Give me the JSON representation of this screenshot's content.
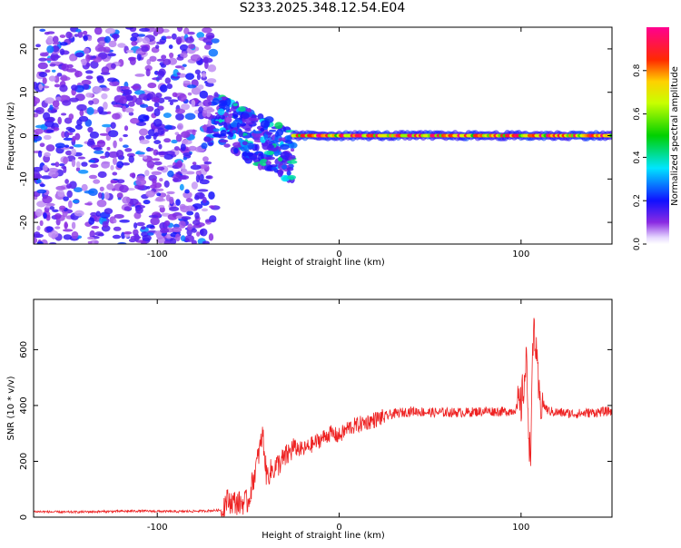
{
  "page_title": "S233.2025.348.12.54.E04",
  "chart_data": [
    {
      "type": "heatmap",
      "name": "spectrogram",
      "xlabel": "Height of straight line (km)",
      "ylabel": "Frequency (Hz)",
      "xlim": [
        -168,
        150
      ],
      "ylim": [
        -25,
        25
      ],
      "x_ticks": [
        -100,
        0,
        100
      ],
      "y_ticks": [
        -20,
        -10,
        0,
        10,
        20
      ],
      "x_tick_labels": [
        "-100",
        "0",
        "100"
      ],
      "y_tick_labels": [
        "-20",
        "-10",
        "0",
        "10",
        "20"
      ],
      "colorbar": {
        "label": "Normalized spectral amplitude",
        "range": [
          0,
          1
        ],
        "ticks": [
          0.0,
          0.2,
          0.4,
          0.6,
          0.8
        ],
        "tick_labels": [
          "0.0",
          "0.2",
          "0.4",
          "0.6",
          "0.8"
        ]
      },
      "features": [
        {
          "description": "diffuse noise",
          "x_range": [
            -168,
            -68
          ],
          "freq_range": [
            -25,
            25
          ],
          "amplitude": [
            0.05,
            0.3
          ]
        },
        {
          "description": "scattered signal",
          "x_range": [
            -68,
            -25
          ],
          "freq_range": [
            -10,
            8
          ],
          "amplitude": [
            0.1,
            0.45
          ]
        },
        {
          "description": "narrowband line",
          "x_range": [
            -25,
            150
          ],
          "freq": 0,
          "amplitude": [
            0.5,
            1.0
          ]
        }
      ]
    },
    {
      "type": "line",
      "name": "snr",
      "xlabel": "Height of straight line (km)",
      "ylabel": "SNR (10 * v/v)",
      "xlim": [
        -168,
        150
      ],
      "ylim": [
        0,
        780
      ],
      "x_ticks": [
        -100,
        0,
        100
      ],
      "y_ticks": [
        0,
        200,
        400,
        600
      ],
      "x_tick_labels": [
        "-100",
        "0",
        "100"
      ],
      "y_tick_labels": [
        "0",
        "200",
        "400",
        "600"
      ],
      "color": "#ee2222",
      "series": [
        {
          "name": "SNR",
          "x": [
            -168,
            -150,
            -130,
            -110,
            -90,
            -75,
            -65,
            -62,
            -55,
            -50,
            -45,
            -42,
            -40,
            -35,
            -30,
            -25,
            -20,
            -15,
            -10,
            -5,
            0,
            5,
            10,
            15,
            20,
            25,
            30,
            40,
            50,
            60,
            70,
            80,
            90,
            95,
            100,
            103,
            105,
            107,
            110,
            115,
            120,
            130,
            140,
            150
          ],
          "y": [
            20,
            18,
            20,
            22,
            20,
            22,
            25,
            60,
            50,
            55,
            200,
            300,
            150,
            180,
            210,
            250,
            240,
            260,
            280,
            300,
            290,
            320,
            330,
            340,
            350,
            360,
            370,
            380,
            375,
            375,
            375,
            380,
            378,
            380,
            400,
            550,
            200,
            700,
            420,
            380,
            375,
            370,
            375,
            380
          ]
        }
      ]
    }
  ]
}
